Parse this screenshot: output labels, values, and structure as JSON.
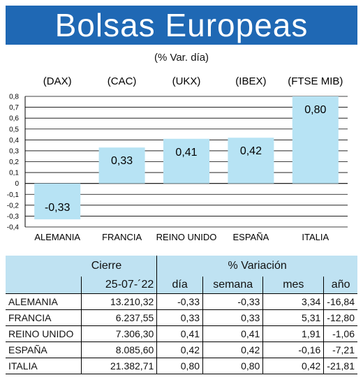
{
  "title": "Bolsas Europeas",
  "subtitle": "(% Var. día)",
  "chart_data": {
    "type": "bar",
    "categories": [
      "ALEMANIA",
      "FRANCIA",
      "REINO UNIDO",
      "ESPAÑA",
      "ITALIA"
    ],
    "indices": [
      "(DAX)",
      "(CAC)",
      "(UKX)",
      "(IBEX)",
      "(FTSE MIB)"
    ],
    "values": [
      -0.33,
      0.33,
      0.41,
      0.42,
      0.8
    ],
    "value_labels": [
      "-0,33",
      "0,33",
      "0,41",
      "0,42",
      "0,80"
    ],
    "ylim": [
      -0.4,
      0.8
    ],
    "yticks": [
      0.8,
      0.7,
      0.6,
      0.5,
      0.4,
      0.3,
      0.2,
      0.1,
      0,
      -0.1,
      -0.2,
      -0.3,
      -0.4
    ],
    "ytick_labels": [
      "0,8",
      "0,7",
      "0,6",
      "0,5",
      "0,4",
      "0,3",
      "0,2",
      "0,1",
      "0",
      "-0,1",
      "-0,2",
      "-0,3",
      "-0,4"
    ],
    "grid": true,
    "bar_color": "#b7e3f4"
  },
  "table": {
    "header_cierre": "Cierre",
    "header_variacion": "% Variación",
    "date": "25-07-´22",
    "col_dia": "día",
    "col_semana": "semana",
    "col_mes": "mes",
    "col_anio": "año",
    "rows": [
      {
        "country": "ALEMANIA",
        "cierre": "13.210,32",
        "dia": "-0,33",
        "semana": "-0,33",
        "mes": "3,34",
        "anio": "-16,84"
      },
      {
        "country": "FRANCIA",
        "cierre": "6.237,55",
        "dia": "0,33",
        "semana": "0,33",
        "mes": "5,31",
        "anio": "-12,80"
      },
      {
        "country": "REINO UNIDO",
        "cierre": "7.306,30",
        "dia": "0,41",
        "semana": "0,41",
        "mes": "1,91",
        "anio": "-1,06"
      },
      {
        "country": "ESPAÑA",
        "cierre": "8.085,60",
        "dia": "0,42",
        "semana": "0,42",
        "mes": "-0,16",
        "anio": "-7,21"
      },
      {
        "country": "ITALIA",
        "cierre": "21.382,71",
        "dia": "0,80",
        "semana": "0,80",
        "mes": "0,42",
        "anio": "-21,81"
      }
    ]
  },
  "colors": {
    "title_bg": "#1f68b4",
    "header_bg": "#bfe2f2"
  }
}
